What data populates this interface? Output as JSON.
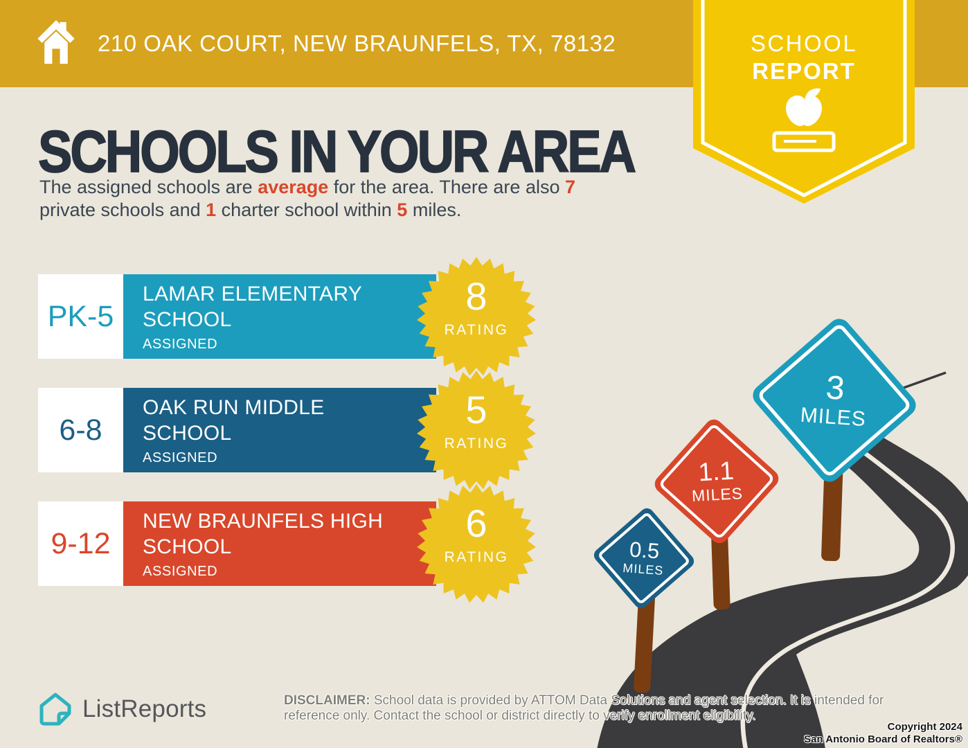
{
  "colors": {
    "background": "#EBE6DB",
    "banner_gold": "#D7A41F",
    "pennant_yellow": "#F3C704",
    "starburst_yellow": "#EDC320",
    "cyan": "#1C9DBD",
    "dark_blue": "#1A5F85",
    "red_orange": "#D8472B",
    "navy": "#28323E",
    "road": "#3B3A3D",
    "post_brown": "#7A3D11",
    "logo_teal": "#2CB3BF"
  },
  "header": {
    "address": "210 OAK COURT, NEW BRAUNFELS, TX, 78132"
  },
  "ribbon": {
    "line1": "SCHOOL",
    "line2": "REPORT"
  },
  "main": {
    "title": "SCHOOLS IN YOUR AREA",
    "intro": {
      "seg1": "The assigned schools are ",
      "hl1": "average",
      "seg2": " for the area. There are also ",
      "hl2": "7",
      "seg3": "private schools and ",
      "hl3": "1",
      "seg4": " charter school within ",
      "hl4": "5",
      "seg5": " miles."
    }
  },
  "schools": [
    {
      "grades": "PK-5",
      "name": "LAMAR ELEMENTARY\nSCHOOL",
      "status": "ASSIGNED",
      "rating": "8",
      "rating_label": "RATING",
      "color": "#1C9DBD"
    },
    {
      "grades": "6-8",
      "name": "OAK RUN MIDDLE\nSCHOOL",
      "status": "ASSIGNED",
      "rating": "5",
      "rating_label": "RATING",
      "color": "#1A5F85"
    },
    {
      "grades": "9-12",
      "name": "NEW BRAUNFELS HIGH\nSCHOOL",
      "status": "ASSIGNED",
      "rating": "6",
      "rating_label": "RATING",
      "color": "#D8472B"
    }
  ],
  "distance_signs": [
    {
      "distance": "0.5",
      "unit": "MILES",
      "color": "#1A5F85"
    },
    {
      "distance": "1.1",
      "unit": "MILES",
      "color": "#D8472B"
    },
    {
      "distance": "3",
      "unit": "MILES",
      "color": "#1C9DBD"
    }
  ],
  "footer": {
    "logo_text": "ListReports",
    "disclaimer_label": "DISCLAIMER:",
    "disclaimer_text": " School data is provided by ATTOM Data Solutions and agent selection. It is intended for reference only. Contact the school or district directly to verify enrollment eligibility.",
    "copyright_line1": "Copyright 2024",
    "copyright_line2": "San Antonio Board of Realtors®"
  }
}
